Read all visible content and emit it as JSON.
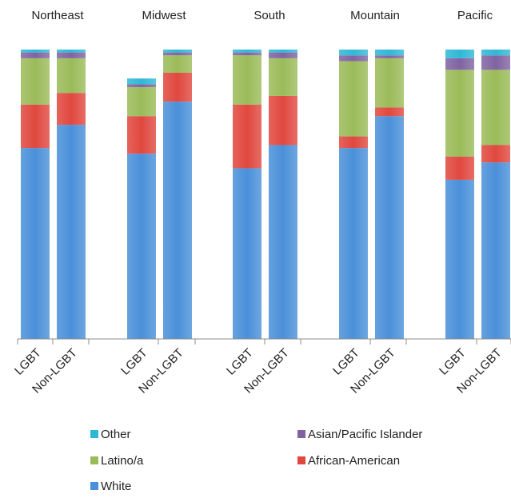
{
  "chart_data": {
    "type": "bar",
    "stacked": true,
    "normalized_percent": true,
    "regions": [
      "Northeast",
      "Midwest",
      "South",
      "Mountain",
      "Pacific"
    ],
    "categories": [
      "LGBT",
      "Non-LGBT",
      "LGBT",
      "Non-LGBT",
      "LGBT",
      "Non-LGBT",
      "LGBT",
      "Non-LGBT",
      "LGBT",
      "Non-LGBT"
    ],
    "series": [
      {
        "name": "White",
        "color": "#4a90d9",
        "values": [
          66,
          74,
          64,
          82,
          59,
          67,
          66,
          77,
          55,
          61
        ]
      },
      {
        "name": "African-American",
        "color": "#e0483f",
        "values": [
          15,
          11,
          13,
          10,
          22,
          17,
          4,
          3,
          8,
          6
        ]
      },
      {
        "name": "Latino/a",
        "color": "#9bbb59",
        "values": [
          16,
          12,
          10,
          6,
          17,
          13,
          26,
          17,
          30,
          26
        ]
      },
      {
        "name": "Asian/Pacific Islander",
        "color": "#8064a2",
        "values": [
          2,
          2,
          1,
          1,
          1,
          2,
          2,
          1,
          4,
          5
        ]
      },
      {
        "name": "Other",
        "color": "#2fb8d6",
        "values": [
          1,
          1,
          2,
          1,
          1,
          1,
          2,
          2,
          3,
          2
        ]
      }
    ],
    "legend": {
      "placement": "bottom",
      "items": [
        {
          "label": "Other",
          "color": "#2fb8d6"
        },
        {
          "label": "Asian/Pacific Islander",
          "color": "#8064a2"
        },
        {
          "label": "Latino/a",
          "color": "#9bbb59"
        },
        {
          "label": "African-American",
          "color": "#e0483f"
        },
        {
          "label": "White",
          "color": "#4a90d9"
        }
      ]
    },
    "ylim": [
      0,
      100
    ],
    "y_axis_visible": false,
    "grid": false
  }
}
